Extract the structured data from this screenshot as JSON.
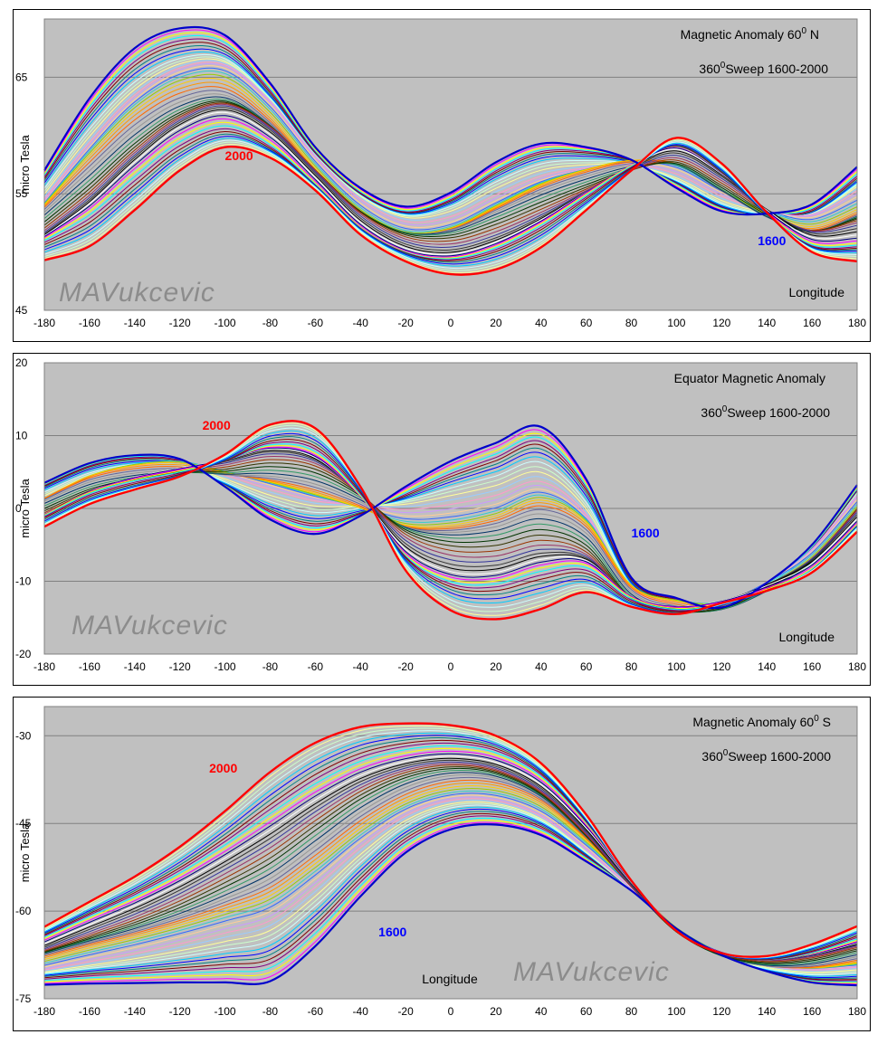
{
  "chart_data": [
    {
      "type": "line",
      "title": "Magnetic Anomaly 60",
      "title_sup": "0",
      "title_suffix": " N",
      "subtitle_prefix": "360",
      "subtitle_sup": "0",
      "subtitle": "Sweep 1600-2000",
      "xlabel": "Longitude",
      "ylabel": "micro  Tesla",
      "watermark": "MAVukcevic",
      "xlim": [
        -180,
        180
      ],
      "ylim": [
        45,
        70
      ],
      "x_ticks": [
        -180,
        -160,
        -140,
        -120,
        -100,
        -80,
        -60,
        -40,
        -20,
        0,
        20,
        40,
        60,
        80,
        100,
        120,
        140,
        160,
        180
      ],
      "y_ticks": [
        45,
        55,
        65
      ],
      "grid": true,
      "x": [
        -180,
        -160,
        -140,
        -120,
        -100,
        -80,
        -60,
        -40,
        -20,
        0,
        20,
        40,
        60,
        80,
        100,
        120,
        140,
        160,
        180
      ],
      "series": [
        {
          "name": "1600",
          "color": "#0000cc",
          "label_color": "#0000ff",
          "label_at": [
            136,
            50.6
          ],
          "width": 2.2,
          "values": [
            57,
            63.2,
            67.5,
            69.2,
            68.6,
            64.5,
            59,
            55.5,
            53.9,
            55.1,
            57.7,
            59.3,
            59,
            57.9,
            55.5,
            53.5,
            53.3,
            54.1,
            57.3
          ]
        },
        {
          "name": "2000",
          "color": "#ff0000",
          "label_color": "#ff0000",
          "label_at": [
            -100,
            57.9
          ],
          "width": 2.4,
          "values": [
            49.3,
            50.5,
            53.6,
            57,
            59,
            58.1,
            55.3,
            51.5,
            49.2,
            48.1,
            48.5,
            50.4,
            53.6,
            57,
            59.8,
            57.6,
            53.4,
            50,
            49.2
          ]
        }
      ],
      "sweep_colors": [
        "#000080",
        "#ff00ff",
        "#ffff00",
        "#00ffff",
        "#800080",
        "#800000",
        "#008080",
        "#0000ff",
        "#00ccff",
        "#ccffff",
        "#ccffcc",
        "#ffff99",
        "#99ccff",
        "#ff99cc",
        "#cc99ff",
        "#ffcc99",
        "#3366ff",
        "#33cccc",
        "#99cc00",
        "#ffcc00",
        "#ff9900",
        "#ff6600",
        "#666699",
        "#969696",
        "#003366",
        "#339966",
        "#003300",
        "#333300",
        "#993300",
        "#993366",
        "#333399",
        "#333333",
        "#000000",
        "#ffffff"
      ],
      "sweep_count": 46
    },
    {
      "type": "line",
      "title": "Equator Magnetic  Anomaly",
      "title_sup": "",
      "title_suffix": "",
      "subtitle_prefix": "360",
      "subtitle_sup": "0",
      "subtitle": "Sweep 1600-2000",
      "xlabel": "Longitude",
      "ylabel": "micro  Tesla",
      "watermark": "MAVukcevic",
      "xlim": [
        -180,
        180
      ],
      "ylim": [
        -20,
        20
      ],
      "x_ticks": [
        -180,
        -160,
        -140,
        -120,
        -100,
        -80,
        -60,
        -40,
        -20,
        0,
        20,
        40,
        60,
        80,
        100,
        120,
        140,
        160,
        180
      ],
      "y_ticks": [
        -20,
        -10,
        0,
        10,
        20
      ],
      "grid": true,
      "x": [
        -180,
        -160,
        -140,
        -120,
        -100,
        -80,
        -60,
        -40,
        -20,
        0,
        20,
        40,
        60,
        80,
        100,
        120,
        140,
        160,
        180
      ],
      "series": [
        {
          "name": "1600",
          "color": "#0000cc",
          "label_color": "#0000ff",
          "label_at": [
            80,
            -4
          ],
          "width": 2.2,
          "values": [
            3.5,
            6.2,
            7.3,
            6.8,
            3,
            -1.5,
            -3.5,
            -1,
            3,
            6.5,
            9,
            11.2,
            4,
            -9.5,
            -12.3,
            -13.6,
            -10.2,
            -5,
            3.2
          ]
        },
        {
          "name": "2000",
          "color": "#ff0000",
          "label_color": "#ff0000",
          "label_at": [
            -110,
            10.8
          ],
          "width": 2.4,
          "values": [
            -2.5,
            0.6,
            2.6,
            4.4,
            7.4,
            11.5,
            11,
            3,
            -8.5,
            -14,
            -15.2,
            -13.8,
            -11.5,
            -13.5,
            -14.5,
            -13,
            -11.3,
            -8.8,
            -3.2
          ]
        }
      ],
      "sweep_colors": [
        "#000080",
        "#ff00ff",
        "#ffff00",
        "#00ffff",
        "#800080",
        "#800000",
        "#008080",
        "#0000ff",
        "#00ccff",
        "#ccffff",
        "#ccffcc",
        "#ffff99",
        "#99ccff",
        "#ff99cc",
        "#cc99ff",
        "#ffcc99",
        "#3366ff",
        "#33cccc",
        "#99cc00",
        "#ffcc00",
        "#ff9900",
        "#ff6600",
        "#666699",
        "#969696",
        "#003366",
        "#339966",
        "#003300",
        "#333300",
        "#993300",
        "#993366",
        "#333399",
        "#333333",
        "#000000",
        "#ffffff"
      ],
      "sweep_count": 46
    },
    {
      "type": "line",
      "title": "Magnetic Anomaly 60",
      "title_sup": "0",
      "title_suffix": " S",
      "subtitle_prefix": "360",
      "subtitle_sup": "0",
      "subtitle": "Sweep 1600-2000",
      "xlabel": "Longitude",
      "ylabel": "micro  Tesla",
      "watermark": "MAVukcevic",
      "xlim": [
        -180,
        180
      ],
      "ylim": [
        -75,
        -25
      ],
      "x_ticks": [
        -180,
        -160,
        -140,
        -120,
        -100,
        -80,
        -60,
        -40,
        -20,
        0,
        20,
        40,
        60,
        80,
        100,
        120,
        140,
        160,
        180
      ],
      "y_ticks": [
        -75,
        -60,
        -45,
        -30
      ],
      "grid": true,
      "x": [
        -180,
        -160,
        -140,
        -120,
        -100,
        -80,
        -60,
        -40,
        -20,
        0,
        20,
        40,
        60,
        80,
        100,
        120,
        140,
        160,
        180
      ],
      "series": [
        {
          "name": "1600",
          "color": "#0000cc",
          "label_color": "#0000ff",
          "label_at": [
            -32,
            -64.3
          ],
          "width": 2.2,
          "values": [
            -72.6,
            -72.4,
            -72.3,
            -72.2,
            -72.2,
            -72,
            -66,
            -57.5,
            -50,
            -46,
            -45.2,
            -47,
            -51.5,
            -56.5,
            -63,
            -67.5,
            -70.3,
            -72.2,
            -72.7
          ]
        },
        {
          "name": "2000",
          "color": "#ff0000",
          "label_color": "#ff0000",
          "label_at": [
            -107,
            -36.3
          ],
          "width": 2.4,
          "values": [
            -62.7,
            -58.4,
            -54.1,
            -49,
            -42.9,
            -36.2,
            -31.2,
            -28.5,
            -27.9,
            -28.2,
            -30,
            -34.7,
            -43.5,
            -54.8,
            -63.4,
            -67.2,
            -67.7,
            -65.7,
            -62.6
          ]
        }
      ],
      "sweep_colors": [
        "#000080",
        "#ff00ff",
        "#ffff00",
        "#00ffff",
        "#800080",
        "#800000",
        "#008080",
        "#0000ff",
        "#00ccff",
        "#ccffff",
        "#ccffcc",
        "#ffff99",
        "#99ccff",
        "#ff99cc",
        "#cc99ff",
        "#ffcc99",
        "#3366ff",
        "#33cccc",
        "#99cc00",
        "#ffcc00",
        "#ff9900",
        "#ff6600",
        "#666699",
        "#969696",
        "#003366",
        "#339966",
        "#003300",
        "#333300",
        "#993300",
        "#993366",
        "#333399",
        "#333333",
        "#000000",
        "#ffffff"
      ],
      "sweep_count": 46
    }
  ]
}
